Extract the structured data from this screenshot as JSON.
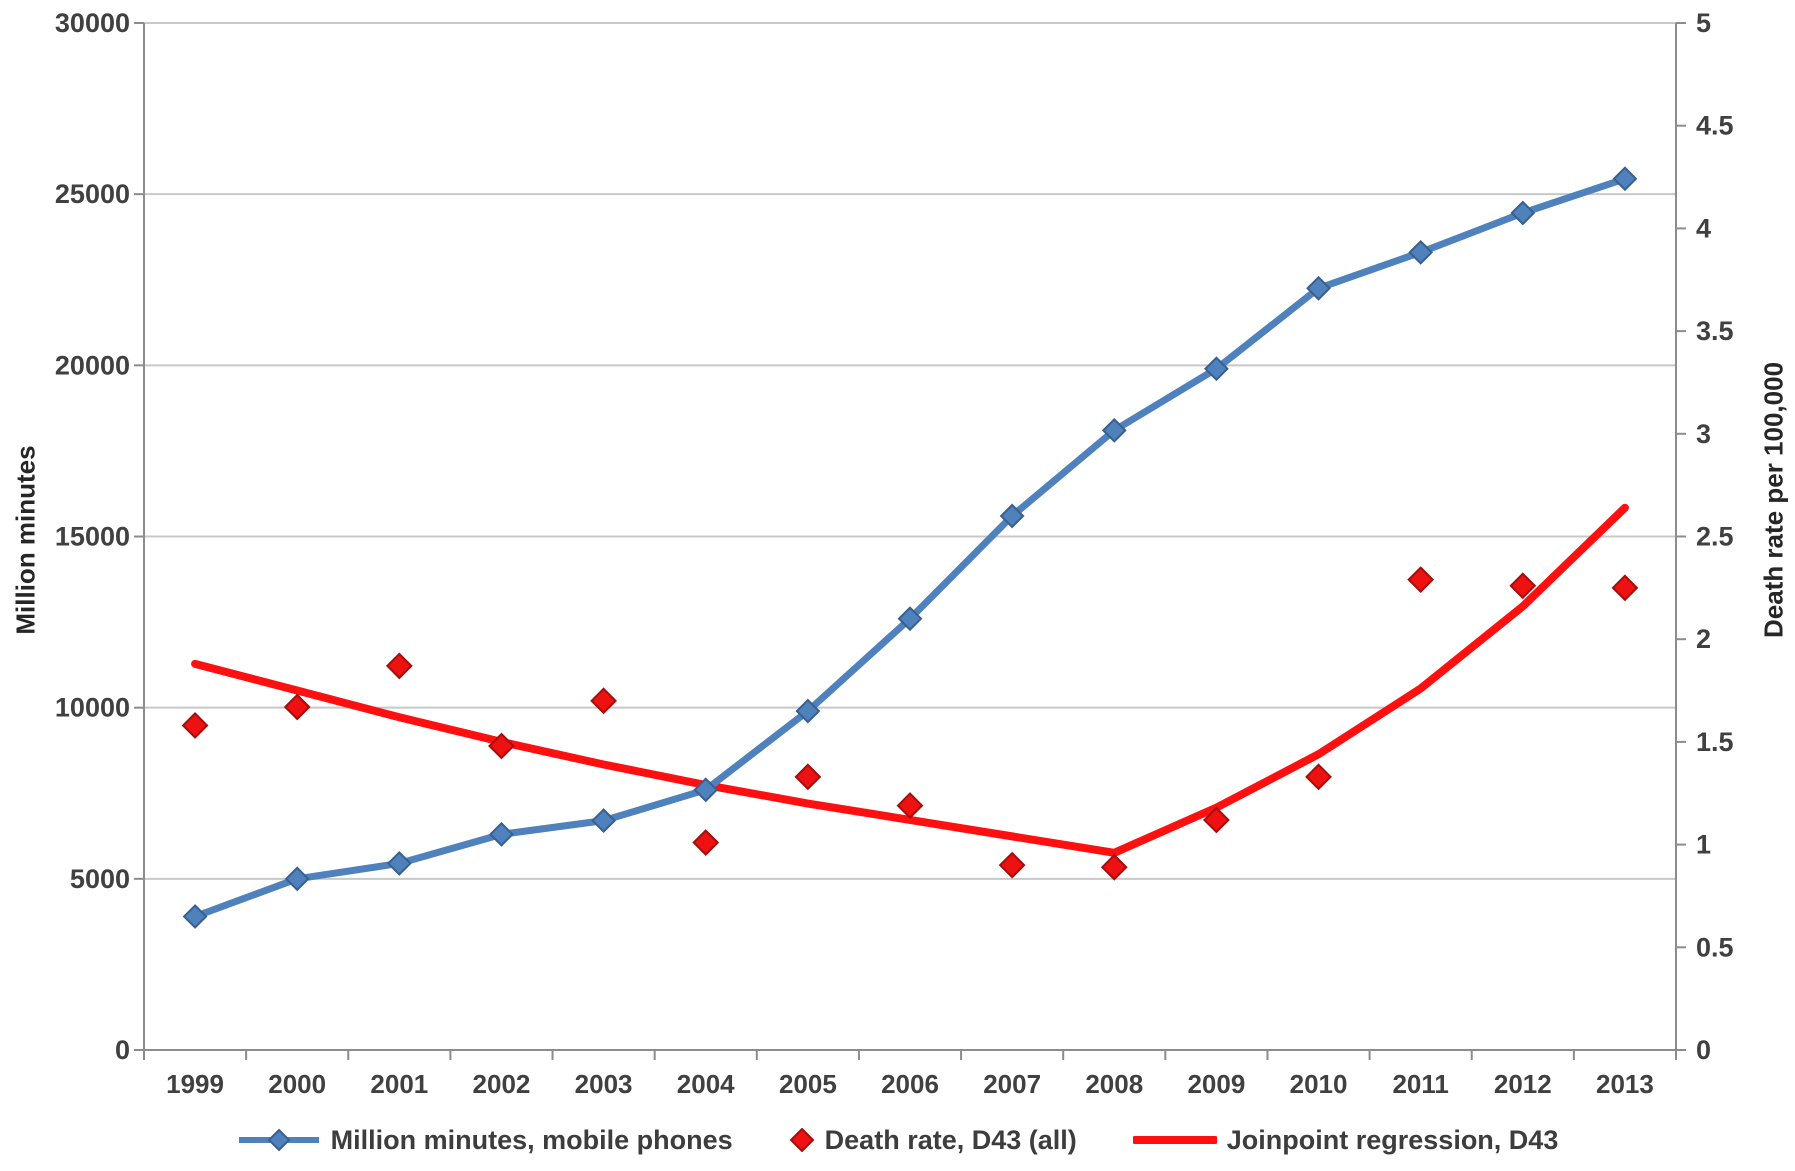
{
  "chart_data": {
    "type": "line",
    "title": "",
    "x": [
      "1999",
      "2000",
      "2001",
      "2002",
      "2003",
      "2004",
      "2005",
      "2006",
      "2007",
      "2008",
      "2009",
      "2010",
      "2011",
      "2012",
      "2013"
    ],
    "series": [
      {
        "name": "Million minutes, mobile phones",
        "axis": "left",
        "type": "line-with-markers",
        "marker": "diamond",
        "color": "#4f81bd",
        "marker_stroke": "#38608f",
        "values": [
          3900,
          5000,
          5450,
          6300,
          6700,
          7600,
          9900,
          12600,
          15600,
          18100,
          19900,
          22250,
          23300,
          24450,
          25450
        ]
      },
      {
        "name": "Death rate, D43 (all)",
        "axis": "right",
        "type": "scatter",
        "marker": "diamond",
        "color": "#ee1111",
        "marker_stroke": "#a50d0d",
        "values": [
          1.58,
          1.67,
          1.87,
          1.48,
          1.7,
          1.01,
          1.33,
          1.19,
          0.9,
          0.89,
          1.12,
          1.33,
          2.29,
          2.26,
          2.25
        ]
      },
      {
        "name": "Joinpoint regression, D43",
        "axis": "right",
        "type": "line",
        "marker": null,
        "color": "#fe1010",
        "values": [
          1.88,
          1.75,
          1.62,
          1.5,
          1.39,
          1.29,
          1.2,
          1.12,
          1.04,
          0.96,
          1.18,
          1.44,
          1.76,
          2.16,
          2.64
        ]
      }
    ],
    "left_axis": {
      "title": "Million minutes",
      "min": 0,
      "max": 30000,
      "step": 5000,
      "ticks": [
        "0",
        "5000",
        "10000",
        "15000",
        "20000",
        "25000",
        "30000"
      ]
    },
    "right_axis": {
      "title": "Death rate per 100,000",
      "min": 0,
      "max": 5,
      "step": 0.5,
      "ticks": [
        "0",
        "0.5",
        "1",
        "1.5",
        "2",
        "2.5",
        "3",
        "3.5",
        "4",
        "4.5",
        "5"
      ]
    },
    "grid": "horizontal-major",
    "gridline_color": "#c8c8c8",
    "axis_color": "#8c8c8c",
    "legend_position": "bottom"
  }
}
